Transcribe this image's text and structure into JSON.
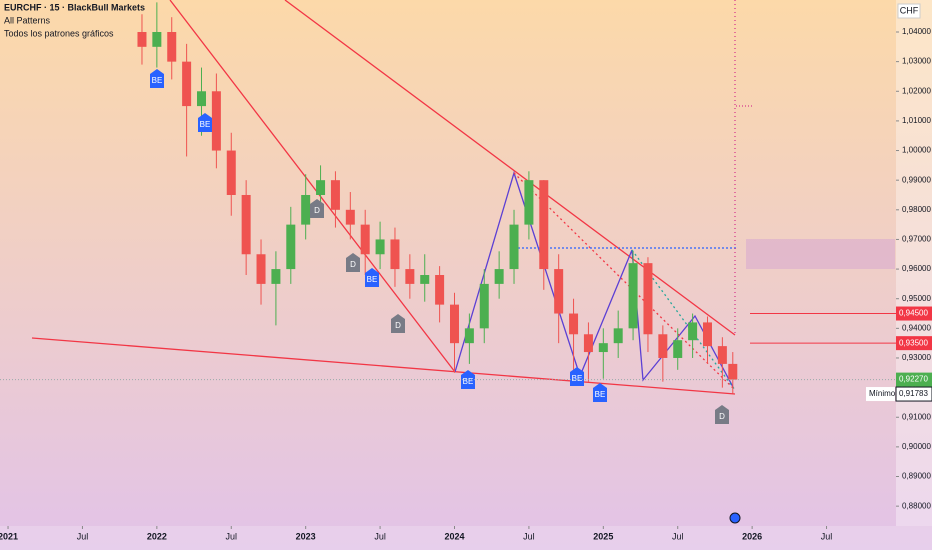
{
  "chart_data": {
    "type": "candlestick",
    "title": "EURCHF · 15 · BlackBull Markets",
    "indicators": [
      "All Patterns",
      "Todos los patrones gráficos"
    ],
    "currency": "CHF",
    "up_color": "#4caf50",
    "down_color": "#ef5350",
    "x": [
      2021.9,
      2022.0,
      2022.1,
      2022.2,
      2022.3,
      2022.4,
      2022.5,
      2022.6,
      2022.7,
      2022.8,
      2022.9,
      2023.0,
      2023.1,
      2023.2,
      2023.3,
      2023.4,
      2023.5,
      2023.6,
      2023.7,
      2023.8,
      2023.9,
      2024.0,
      2024.1,
      2024.2,
      2024.3,
      2024.4,
      2024.5,
      2024.6,
      2024.7,
      2024.8,
      2024.9,
      2025.0,
      2025.1,
      2025.2,
      2025.3,
      2025.4,
      2025.5,
      2025.6,
      2025.7,
      2025.8,
      2025.87
    ],
    "open": [
      1.04,
      1.035,
      1.04,
      1.03,
      1.015,
      1.02,
      1.0,
      0.985,
      0.965,
      0.955,
      0.96,
      0.975,
      0.985,
      0.99,
      0.98,
      0.975,
      0.965,
      0.97,
      0.96,
      0.955,
      0.958,
      0.948,
      0.935,
      0.94,
      0.955,
      0.96,
      0.975,
      0.99,
      0.96,
      0.945,
      0.938,
      0.932,
      0.935,
      0.94,
      0.962,
      0.938,
      0.93,
      0.936,
      0.942,
      0.934,
      0.928
    ],
    "high": [
      1.046,
      1.05,
      1.045,
      1.036,
      1.028,
      1.026,
      1.006,
      0.99,
      0.97,
      0.966,
      0.981,
      0.992,
      0.995,
      0.993,
      0.986,
      0.98,
      0.976,
      0.974,
      0.965,
      0.965,
      0.961,
      0.952,
      0.945,
      0.96,
      0.966,
      0.98,
      0.993,
      0.99,
      0.965,
      0.95,
      0.942,
      0.94,
      0.946,
      0.966,
      0.964,
      0.941,
      0.94,
      0.945,
      0.944,
      0.937,
      0.932
    ],
    "low": [
      1.029,
      1.028,
      1.024,
      0.998,
      1.005,
      0.994,
      0.978,
      0.958,
      0.948,
      0.941,
      0.955,
      0.97,
      0.98,
      0.974,
      0.97,
      0.958,
      0.96,
      0.954,
      0.95,
      0.949,
      0.942,
      0.925,
      0.928,
      0.935,
      0.95,
      0.955,
      0.97,
      0.953,
      0.935,
      0.922,
      0.922,
      0.923,
      0.93,
      0.936,
      0.932,
      0.922,
      0.926,
      0.93,
      0.928,
      0.92,
      0.918
    ],
    "close": [
      1.035,
      1.04,
      1.03,
      1.015,
      1.02,
      1.0,
      0.985,
      0.965,
      0.955,
      0.96,
      0.975,
      0.985,
      0.99,
      0.98,
      0.975,
      0.965,
      0.97,
      0.96,
      0.955,
      0.958,
      0.948,
      0.935,
      0.94,
      0.955,
      0.96,
      0.975,
      0.99,
      0.96,
      0.945,
      0.938,
      0.932,
      0.935,
      0.94,
      0.962,
      0.938,
      0.93,
      0.936,
      0.942,
      0.934,
      0.928,
      0.9227
    ],
    "xlim": [
      2020.946,
      2026.96
    ],
    "ylim": [
      0.8733,
      1.0508
    ],
    "xticks": [
      2021,
      {
        "value": 2021.5,
        "label": "Jul"
      },
      2022,
      {
        "value": 2022.5,
        "label": "Jul"
      },
      2023,
      {
        "value": 2023.5,
        "label": "Jul"
      },
      2024,
      {
        "value": 2024.5,
        "label": "Jul"
      },
      2025,
      {
        "value": 2025.5,
        "label": "Jul"
      },
      2026,
      {
        "value": 2026.5,
        "label": "Jul"
      }
    ],
    "yticks": [
      {
        "value": 0.88,
        "label": "0,88000"
      },
      {
        "value": 0.89,
        "label": "0,89000"
      },
      {
        "value": 0.9,
        "label": "0,90000"
      },
      {
        "value": 0.91,
        "label": "0,91000"
      },
      {
        "value": 0.92,
        "label": "0,92000"
      },
      {
        "value": 0.93,
        "label": "0,93000"
      },
      {
        "value": 0.94,
        "label": "0,94000"
      },
      {
        "value": 0.95,
        "label": "0,95000"
      },
      {
        "value": 0.96,
        "label": "0,96000"
      },
      {
        "value": 0.97,
        "label": "0,97000"
      },
      {
        "value": 0.98,
        "label": "0,98000"
      },
      {
        "value": 0.99,
        "label": "0,99000"
      },
      {
        "value": 1.0,
        "label": "1,00000"
      },
      {
        "value": 1.01,
        "label": "1,01000"
      },
      {
        "value": 1.02,
        "label": "1,02000"
      },
      {
        "value": 1.03,
        "label": "1,03000"
      },
      {
        "value": 1.04,
        "label": "1,04000"
      }
    ],
    "price_levels": [
      {
        "value": 0.945,
        "label": "0,94500",
        "color": "#f23645"
      },
      {
        "value": 0.935,
        "label": "0,93500",
        "color": "#f23645"
      }
    ],
    "last_price": {
      "value": 0.9227,
      "label": "0,92270",
      "countdown": "4d 2h",
      "color": "#4caf50"
    },
    "low_mark": {
      "value": 0.91783,
      "label": "0,91783",
      "tag": "Mínimo"
    },
    "pattern_labels": [
      "BE",
      "BE",
      "D",
      "D",
      "BE",
      "D",
      "BE",
      "BE",
      "BE",
      "D"
    ]
  }
}
